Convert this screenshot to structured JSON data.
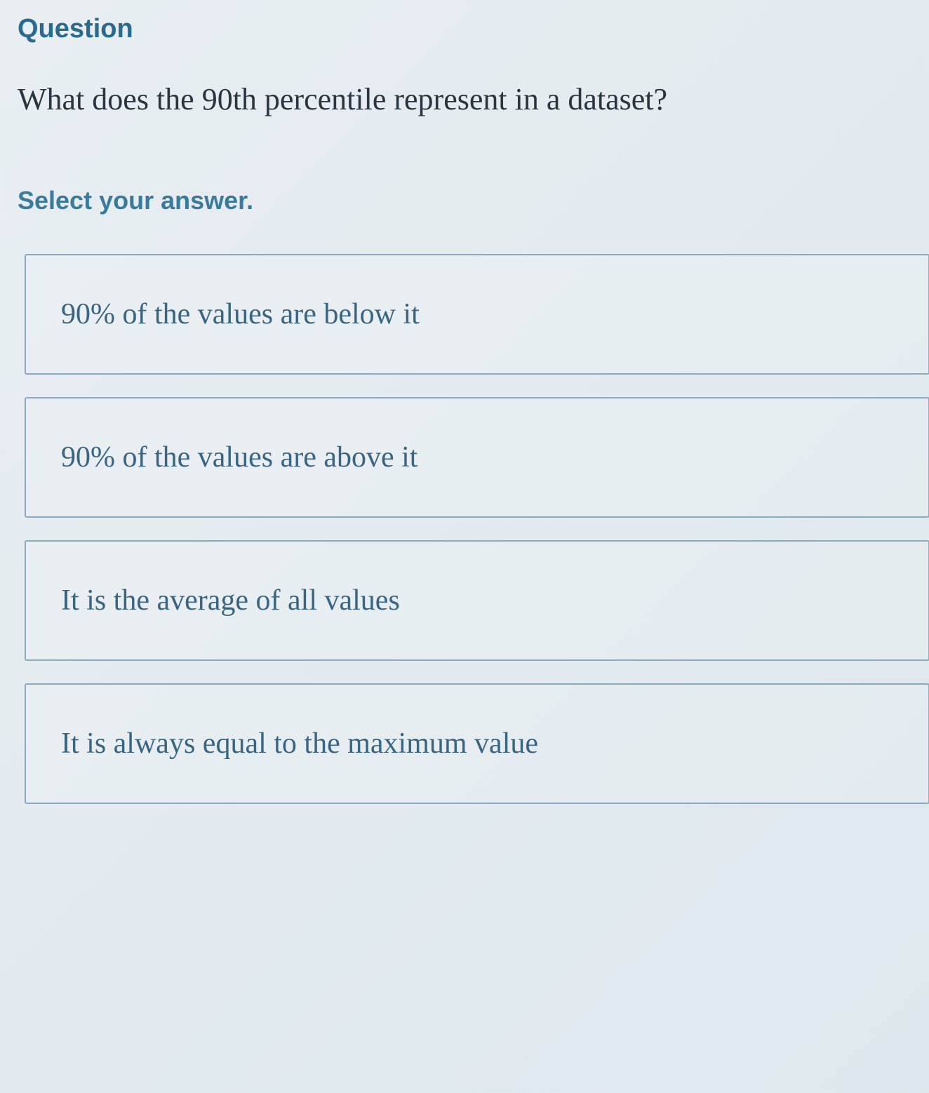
{
  "header": {
    "question_label": "Question",
    "select_label": "Select your answer."
  },
  "question": {
    "text": "What does the 90th percentile represent in a dataset?"
  },
  "options": [
    {
      "text": "90% of the values are below it"
    },
    {
      "text": "90% of the values are above it"
    },
    {
      "text": "It is the average of all values"
    },
    {
      "text": "It is always equal to the maximum value"
    }
  ],
  "styling": {
    "label_color": "#2a6a8f",
    "question_text_color": "#2a3540",
    "option_text_color": "#3a6580",
    "option_border_color": "#8aaabf",
    "background_gradient_start": "#e8eef2",
    "background_gradient_end": "#dde7ed",
    "question_label_fontsize": 38,
    "question_text_fontsize": 44,
    "select_label_fontsize": 36,
    "option_fontsize": 42
  }
}
